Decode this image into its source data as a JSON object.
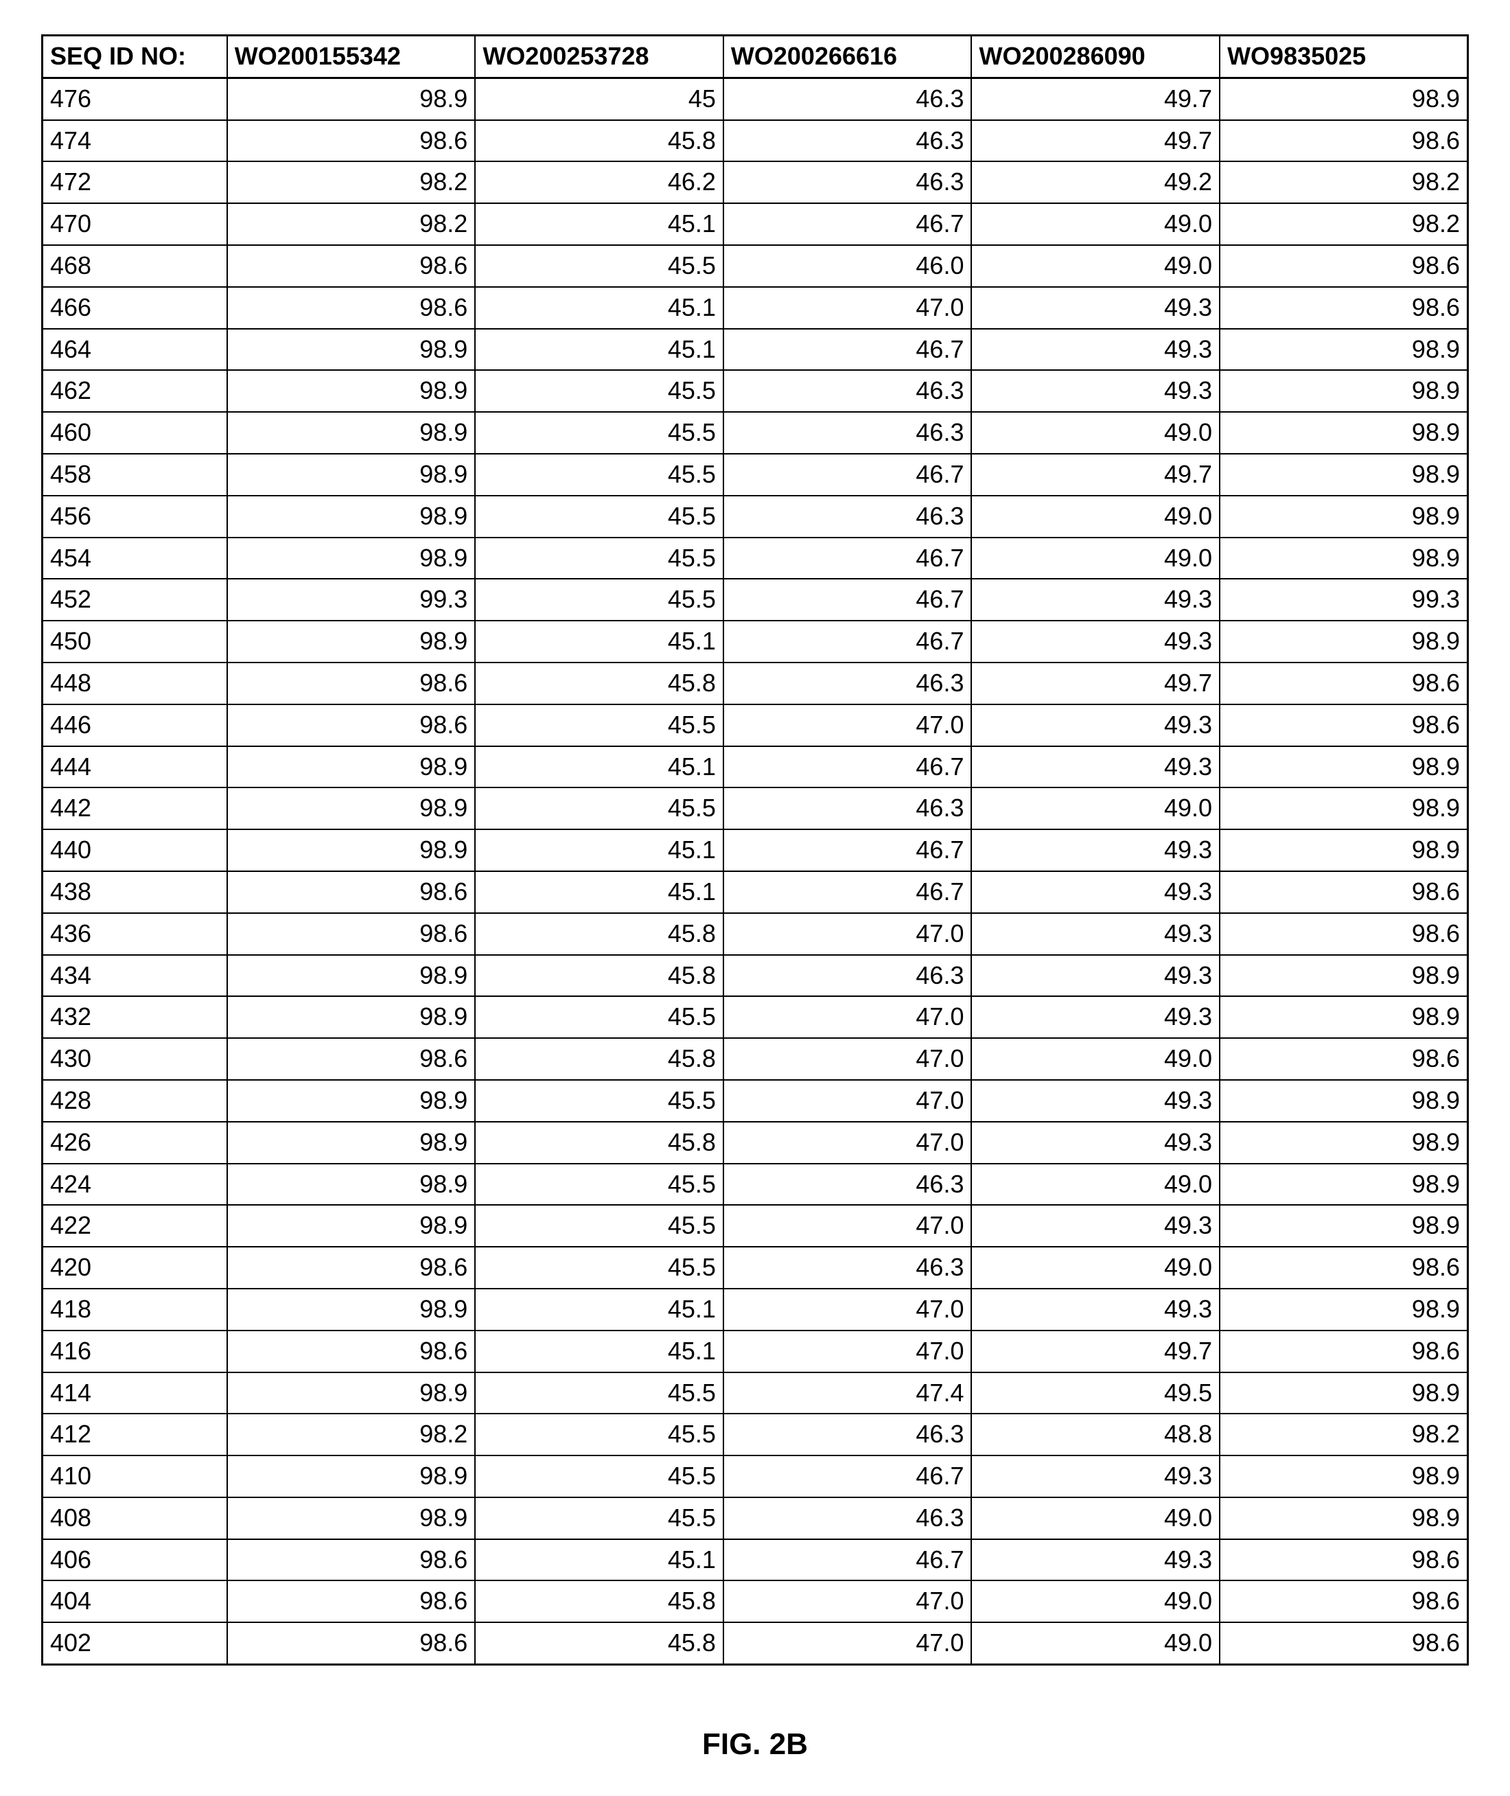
{
  "table": {
    "columns": [
      "SEQ ID NO:",
      "WO200155342",
      "WO200253728",
      "WO200266616",
      "WO200286090",
      "WO9835025"
    ],
    "col_classes": [
      "col-seq",
      "col-w1",
      "col-w2",
      "col-w3",
      "col-w4",
      "col-w5"
    ],
    "rows": [
      [
        "476",
        "98.9",
        "45",
        "46.3",
        "49.7",
        "98.9"
      ],
      [
        "474",
        "98.6",
        "45.8",
        "46.3",
        "49.7",
        "98.6"
      ],
      [
        "472",
        "98.2",
        "46.2",
        "46.3",
        "49.2",
        "98.2"
      ],
      [
        "470",
        "98.2",
        "45.1",
        "46.7",
        "49.0",
        "98.2"
      ],
      [
        "468",
        "98.6",
        "45.5",
        "46.0",
        "49.0",
        "98.6"
      ],
      [
        "466",
        "98.6",
        "45.1",
        "47.0",
        "49.3",
        "98.6"
      ],
      [
        "464",
        "98.9",
        "45.1",
        "46.7",
        "49.3",
        "98.9"
      ],
      [
        "462",
        "98.9",
        "45.5",
        "46.3",
        "49.3",
        "98.9"
      ],
      [
        "460",
        "98.9",
        "45.5",
        "46.3",
        "49.0",
        "98.9"
      ],
      [
        "458",
        "98.9",
        "45.5",
        "46.7",
        "49.7",
        "98.9"
      ],
      [
        "456",
        "98.9",
        "45.5",
        "46.3",
        "49.0",
        "98.9"
      ],
      [
        "454",
        "98.9",
        "45.5",
        "46.7",
        "49.0",
        "98.9"
      ],
      [
        "452",
        "99.3",
        "45.5",
        "46.7",
        "49.3",
        "99.3"
      ],
      [
        "450",
        "98.9",
        "45.1",
        "46.7",
        "49.3",
        "98.9"
      ],
      [
        "448",
        "98.6",
        "45.8",
        "46.3",
        "49.7",
        "98.6"
      ],
      [
        "446",
        "98.6",
        "45.5",
        "47.0",
        "49.3",
        "98.6"
      ],
      [
        "444",
        "98.9",
        "45.1",
        "46.7",
        "49.3",
        "98.9"
      ],
      [
        "442",
        "98.9",
        "45.5",
        "46.3",
        "49.0",
        "98.9"
      ],
      [
        "440",
        "98.9",
        "45.1",
        "46.7",
        "49.3",
        "98.9"
      ],
      [
        "438",
        "98.6",
        "45.1",
        "46.7",
        "49.3",
        "98.6"
      ],
      [
        "436",
        "98.6",
        "45.8",
        "47.0",
        "49.3",
        "98.6"
      ],
      [
        "434",
        "98.9",
        "45.8",
        "46.3",
        "49.3",
        "98.9"
      ],
      [
        "432",
        "98.9",
        "45.5",
        "47.0",
        "49.3",
        "98.9"
      ],
      [
        "430",
        "98.6",
        "45.8",
        "47.0",
        "49.0",
        "98.6"
      ],
      [
        "428",
        "98.9",
        "45.5",
        "47.0",
        "49.3",
        "98.9"
      ],
      [
        "426",
        "98.9",
        "45.8",
        "47.0",
        "49.3",
        "98.9"
      ],
      [
        "424",
        "98.9",
        "45.5",
        "46.3",
        "49.0",
        "98.9"
      ],
      [
        "422",
        "98.9",
        "45.5",
        "47.0",
        "49.3",
        "98.9"
      ],
      [
        "420",
        "98.6",
        "45.5",
        "46.3",
        "49.0",
        "98.6"
      ],
      [
        "418",
        "98.9",
        "45.1",
        "47.0",
        "49.3",
        "98.9"
      ],
      [
        "416",
        "98.6",
        "45.1",
        "47.0",
        "49.7",
        "98.6"
      ],
      [
        "414",
        "98.9",
        "45.5",
        "47.4",
        "49.5",
        "98.9"
      ],
      [
        "412",
        "98.2",
        "45.5",
        "46.3",
        "48.8",
        "98.2"
      ],
      [
        "410",
        "98.9",
        "45.5",
        "46.7",
        "49.3",
        "98.9"
      ],
      [
        "408",
        "98.9",
        "45.5",
        "46.3",
        "49.0",
        "98.9"
      ],
      [
        "406",
        "98.6",
        "45.1",
        "46.7",
        "49.3",
        "98.6"
      ],
      [
        "404",
        "98.6",
        "45.8",
        "47.0",
        "49.0",
        "98.6"
      ],
      [
        "402",
        "98.6",
        "45.8",
        "47.0",
        "49.0",
        "98.6"
      ]
    ]
  },
  "caption": "FIG. 2B"
}
